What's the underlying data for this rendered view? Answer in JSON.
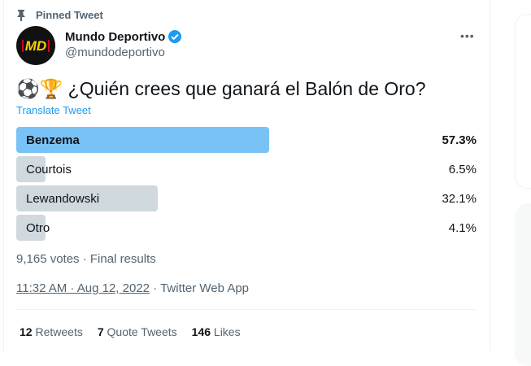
{
  "pinned_label": "Pinned Tweet",
  "author": {
    "name": "Mundo Deportivo",
    "handle": "@mundodeportivo",
    "verified": true,
    "avatar_text": "MD"
  },
  "tweet": {
    "emojis": "⚽🏆",
    "text": "¿Quién crees que ganará el Balón de Oro?",
    "translate": "Translate Tweet"
  },
  "poll": {
    "options": [
      {
        "label": "Benzema",
        "percent": "57.3%",
        "value": 57.3,
        "winner": true
      },
      {
        "label": "Courtois",
        "percent": "6.5%",
        "value": 6.5
      },
      {
        "label": "Lewandowski",
        "percent": "32.1%",
        "value": 32.1
      },
      {
        "label": "Otro",
        "percent": "4.1%",
        "value": 4.1
      }
    ],
    "summary": "9,165 votes · Final results"
  },
  "timestamp": "11:32 AM · Aug 12, 2022",
  "source": " · Twitter Web App",
  "stats": {
    "retweets": "12",
    "retweets_label": "Retweets",
    "quotes": "7",
    "quotes_label": "Quote Tweets",
    "likes": "146",
    "likes_label": "Likes"
  },
  "colors": {
    "winner_bar": "#79c2f6",
    "bar": "#cfd9de",
    "link": "#1d9bf0"
  }
}
